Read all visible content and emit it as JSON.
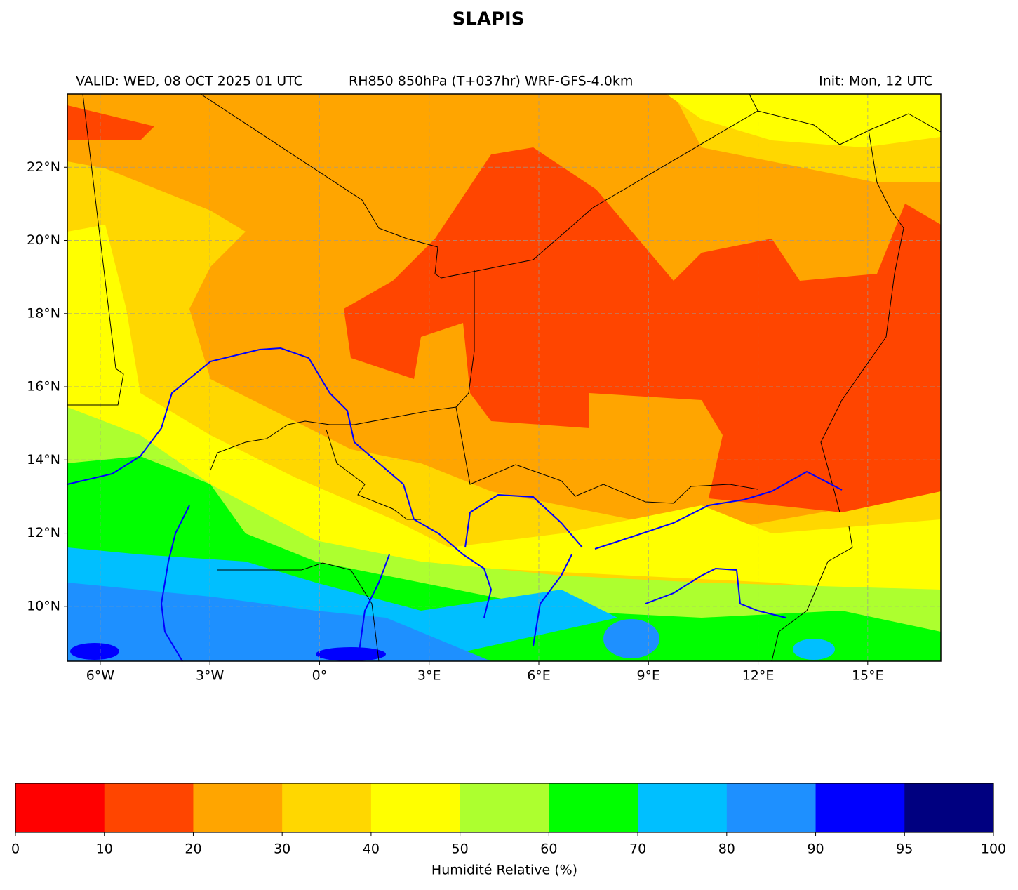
{
  "title": "SLAPIS",
  "header": {
    "left": "VALID: WED, 08 OCT 2025 01 UTC",
    "center": "RH850 850hPa (T+037hr) WRF-GFS-4.0km",
    "right": "Init: Mon, 12 UTC"
  },
  "map": {
    "xlim": [
      -6.9,
      17
    ],
    "ylim": [
      8.5,
      24
    ],
    "xticks": [
      {
        "value": -6,
        "label": "6°W"
      },
      {
        "value": -3,
        "label": "3°W"
      },
      {
        "value": 0,
        "label": "0°"
      },
      {
        "value": 3,
        "label": "3°E"
      },
      {
        "value": 6,
        "label": "6°E"
      },
      {
        "value": 9,
        "label": "9°E"
      },
      {
        "value": 12,
        "label": "12°E"
      },
      {
        "value": 15,
        "label": "15°E"
      }
    ],
    "yticks": [
      {
        "value": 10,
        "label": "10°N"
      },
      {
        "value": 12,
        "label": "12°N"
      },
      {
        "value": 14,
        "label": "14°N"
      },
      {
        "value": 16,
        "label": "16°N"
      },
      {
        "value": 18,
        "label": "18°N"
      },
      {
        "value": 20,
        "label": "20°N"
      },
      {
        "value": 22,
        "label": "22°N"
      }
    ],
    "grid": true
  },
  "colorbar": {
    "label": "Humidité Relative (%)",
    "bounds": [
      0,
      10,
      20,
      30,
      40,
      50,
      60,
      70,
      80,
      90,
      95,
      100
    ],
    "colors": [
      "#ff0000",
      "#ff4500",
      "#ffa500",
      "#ffd700",
      "#ffff00",
      "#adff2f",
      "#00ff00",
      "#00bfff",
      "#1e90ff",
      "#0000ff",
      "#000080"
    ]
  }
}
